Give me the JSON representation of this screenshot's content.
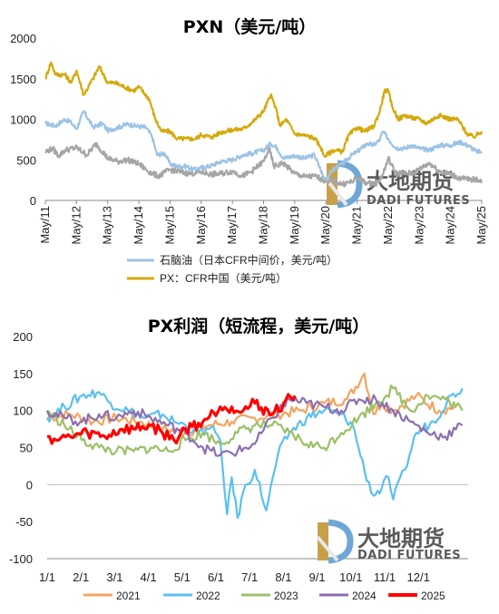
{
  "chart_data": [
    {
      "type": "line",
      "title": "PXN（美元/吨）",
      "ylim": [
        0,
        2000
      ],
      "yticks": [
        0,
        500,
        1000,
        1500,
        2000
      ],
      "x_labels": [
        "May/11",
        "May/12",
        "May/13",
        "May/14",
        "May/15",
        "May/16",
        "May/17",
        "May/18",
        "May/19",
        "May/20",
        "May/21",
        "May/22",
        "May/23",
        "May/24",
        "May/25"
      ],
      "series": [
        {
          "name": "石脑油（日本CFR中间价，美元/吨）",
          "color": "#9cc3e5",
          "t": [
            2011.37,
            2011.7,
            2012.0,
            2012.2,
            2012.37,
            2012.6,
            2012.9,
            2013.2,
            2013.37,
            2013.7,
            2014.0,
            2014.37,
            2014.6,
            2014.8,
            2014.95,
            2015.2,
            2015.37,
            2015.6,
            2015.9,
            2016.1,
            2016.37,
            2016.7,
            2017.0,
            2017.37,
            2017.7,
            2018.0,
            2018.37,
            2018.6,
            2018.8,
            2019.0,
            2019.37,
            2019.7,
            2020.0,
            2020.2,
            2020.3,
            2020.37,
            2020.6,
            2020.9,
            2021.2,
            2021.37,
            2021.7,
            2021.9,
            2022.1,
            2022.2,
            2022.37,
            2022.6,
            2022.9,
            2023.1,
            2023.37,
            2023.7,
            2024.0,
            2024.37,
            2024.7,
            2025.0,
            2025.2,
            2025.37
          ],
          "y": [
            950,
            920,
            1000,
            960,
            880,
            1100,
            900,
            950,
            860,
            900,
            940,
            910,
            900,
            780,
            560,
            580,
            450,
            420,
            420,
            380,
            400,
            430,
            480,
            500,
            560,
            580,
            620,
            700,
            650,
            520,
            550,
            520,
            560,
            380,
            280,
            270,
            380,
            450,
            560,
            600,
            700,
            680,
            750,
            850,
            760,
            650,
            640,
            680,
            640,
            620,
            680,
            680,
            720,
            660,
            600,
            600
          ]
        },
        {
          "name": "PX：CFR中国（美元/吨）",
          "color": "#d4a90c",
          "t": [
            2011.37,
            2011.55,
            2011.7,
            2012.0,
            2012.2,
            2012.37,
            2012.6,
            2012.9,
            2013.1,
            2013.37,
            2013.6,
            2013.9,
            2014.2,
            2014.37,
            2014.7,
            2014.9,
            2015.1,
            2015.37,
            2015.6,
            2015.9,
            2016.2,
            2016.37,
            2016.7,
            2017.0,
            2017.37,
            2017.7,
            2018.0,
            2018.37,
            2018.6,
            2018.75,
            2018.9,
            2019.1,
            2019.37,
            2019.7,
            2020.0,
            2020.2,
            2020.3,
            2020.37,
            2020.6,
            2020.9,
            2021.1,
            2021.37,
            2021.6,
            2021.9,
            2022.1,
            2022.25,
            2022.37,
            2022.5,
            2022.7,
            2022.9,
            2023.1,
            2023.37,
            2023.6,
            2023.8,
            2024.0,
            2024.37,
            2024.6,
            2024.9,
            2025.1,
            2025.37
          ],
          "y": [
            1500,
            1700,
            1550,
            1550,
            1450,
            1600,
            1300,
            1500,
            1650,
            1450,
            1450,
            1400,
            1350,
            1400,
            1250,
            1000,
            850,
            850,
            760,
            760,
            760,
            810,
            780,
            840,
            870,
            880,
            960,
            1100,
            1300,
            1150,
            920,
            1000,
            820,
            800,
            770,
            660,
            560,
            550,
            620,
            600,
            800,
            900,
            850,
            910,
            1100,
            1350,
            1350,
            1150,
            1000,
            1050,
            1020,
            1000,
            950,
            1000,
            1050,
            1000,
            1000,
            820,
            780,
            850
          ]
        },
        {
          "name": "PXN",
          "color": "#a6a6a6",
          "t": [
            2011.37,
            2011.6,
            2011.8,
            2012.0,
            2012.37,
            2012.7,
            2013.0,
            2013.37,
            2013.7,
            2014.0,
            2014.37,
            2014.6,
            2014.8,
            2015.0,
            2015.37,
            2015.7,
            2016.0,
            2016.37,
            2016.7,
            2017.0,
            2017.37,
            2017.7,
            2018.0,
            2018.37,
            2018.55,
            2018.7,
            2019.0,
            2019.37,
            2019.7,
            2020.0,
            2020.2,
            2020.37,
            2020.6,
            2020.9,
            2021.2,
            2021.37,
            2021.7,
            2022.0,
            2022.2,
            2022.37,
            2022.6,
            2022.9,
            2023.2,
            2023.37,
            2023.7,
            2024.0,
            2024.37,
            2024.7,
            2025.0,
            2025.37
          ],
          "y": [
            600,
            640,
            550,
            620,
            650,
            560,
            700,
            520,
            480,
            500,
            450,
            380,
            330,
            300,
            380,
            350,
            330,
            350,
            320,
            330,
            360,
            300,
            360,
            480,
            640,
            420,
            460,
            330,
            290,
            300,
            270,
            240,
            240,
            200,
            230,
            280,
            210,
            210,
            320,
            520,
            340,
            330,
            340,
            390,
            460,
            360,
            320,
            270,
            260,
            250
          ]
        }
      ]
    },
    {
      "type": "line",
      "title": "PX利润（短流程，美元/吨）",
      "ylim": [
        -100,
        200
      ],
      "yticks": [
        -100,
        -50,
        0,
        50,
        100,
        150,
        200
      ],
      "x_labels": [
        "1/1",
        "2/1",
        "3/1",
        "4/1",
        "5/1",
        "6/1",
        "7/1",
        "8/1",
        "9/1",
        "10/1",
        "11/1",
        "12/1"
      ],
      "series": [
        {
          "name": "2021",
          "color": "#f4a460",
          "d": [
            0,
            20,
            40,
            60,
            80,
            100,
            120,
            140,
            160,
            180,
            200,
            220,
            240,
            260,
            275,
            283,
            290,
            300,
            320,
            340,
            355
          ],
          "y": [
            90,
            95,
            85,
            90,
            85,
            75,
            70,
            80,
            85,
            90,
            95,
            100,
            110,
            115,
            150,
            95,
            110,
            100,
            120,
            100,
            105
          ]
        },
        {
          "name": "2022",
          "color": "#5bc0f0",
          "d": [
            0,
            15,
            30,
            45,
            55,
            70,
            85,
            100,
            110,
            120,
            130,
            140,
            146,
            150,
            156,
            160,
            165,
            170,
            180,
            190,
            200,
            210,
            225,
            240,
            255,
            265,
            270,
            275,
            283,
            290,
            296,
            300,
            310,
            320,
            335,
            350,
            360
          ],
          "y": [
            90,
            105,
            120,
            125,
            110,
            100,
            90,
            95,
            85,
            80,
            70,
            75,
            70,
            60,
            -40,
            10,
            -45,
            -10,
            20,
            -35,
            40,
            70,
            90,
            100,
            95,
            80,
            50,
            20,
            -15,
            -5,
            10,
            -20,
            20,
            70,
            85,
            120,
            130
          ]
        },
        {
          "name": "2023",
          "color": "#9bc068",
          "d": [
            0,
            15,
            30,
            45,
            60,
            75,
            90,
            105,
            120,
            135,
            150,
            165,
            180,
            195,
            210,
            225,
            240,
            255,
            270,
            285,
            300,
            315,
            330,
            345,
            360
          ],
          "y": [
            100,
            80,
            60,
            50,
            45,
            45,
            50,
            45,
            60,
            70,
            55,
            70,
            80,
            80,
            70,
            55,
            50,
            70,
            90,
            110,
            130,
            100,
            120,
            115,
            100
          ]
        },
        {
          "name": "2024",
          "color": "#8c6fb0",
          "d": [
            0,
            15,
            30,
            45,
            60,
            75,
            90,
            105,
            120,
            135,
            150,
            165,
            180,
            195,
            210,
            225,
            240,
            255,
            270,
            285,
            300,
            315,
            330,
            345,
            360
          ],
          "y": [
            100,
            90,
            85,
            95,
            90,
            100,
            90,
            80,
            70,
            50,
            40,
            45,
            55,
            90,
            115,
            110,
            105,
            100,
            115,
            115,
            100,
            85,
            70,
            65,
            80
          ]
        },
        {
          "name": "2025",
          "color": "#ff0000",
          "d": [
            0,
            10,
            20,
            35,
            50,
            65,
            75,
            90,
            100,
            110,
            120,
            135,
            150,
            160,
            170,
            180,
            195,
            205,
            215
          ],
          "y": [
            65,
            60,
            65,
            70,
            65,
            75,
            75,
            80,
            70,
            60,
            75,
            85,
            105,
            105,
            100,
            110,
            95,
            110,
            120
          ]
        }
      ]
    }
  ],
  "watermark": {
    "cn": "大地期货",
    "en": "DADI FUTURES"
  }
}
